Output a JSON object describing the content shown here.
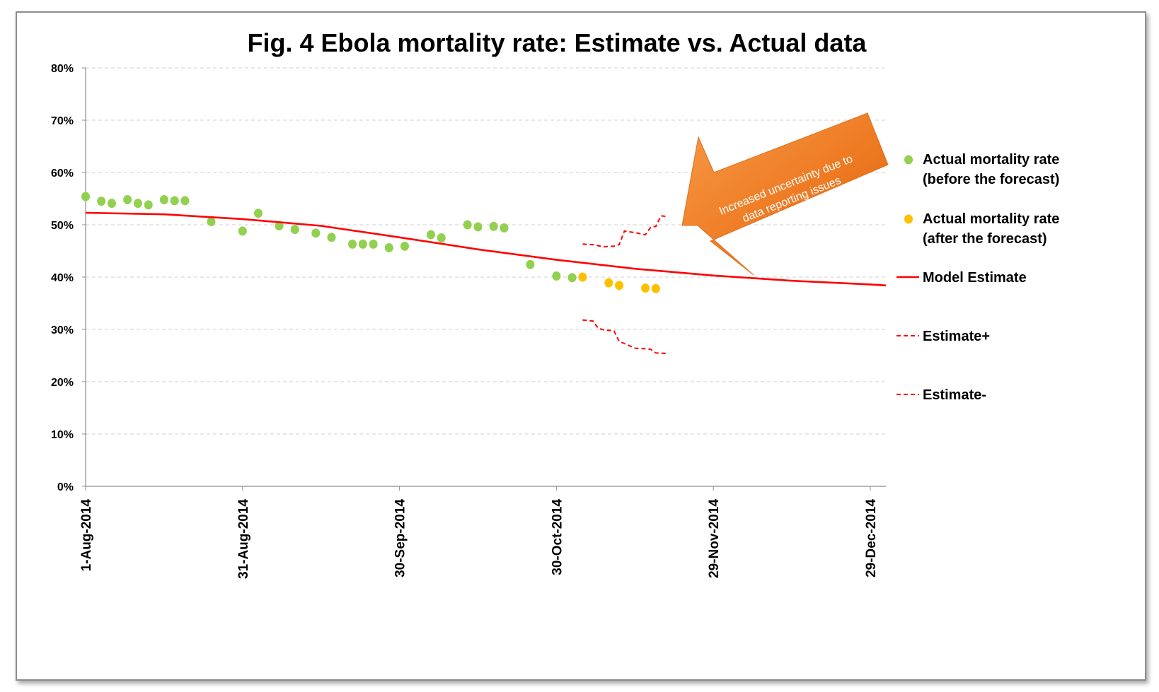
{
  "chart_data": {
    "type": "scatter",
    "title": "Fig. 4 Ebola mortality rate: Estimate vs. Actual data",
    "xlabel": "",
    "ylabel": "",
    "x_axis": {
      "type": "date",
      "ticks": [
        "1-Aug-2014",
        "31-Aug-2014",
        "30-Sep-2014",
        "30-Oct-2014",
        "29-Nov-2014",
        "29-Dec-2014"
      ],
      "range": [
        "2014-08-01",
        "2015-01-01"
      ]
    },
    "y_axis": {
      "ticks": [
        "0%",
        "10%",
        "20%",
        "30%",
        "40%",
        "50%",
        "60%",
        "70%",
        "80%"
      ],
      "range": [
        0,
        80
      ],
      "unit": "%"
    },
    "grid": "horizontal dashed",
    "legend_position": "right",
    "series": [
      {
        "name": "Actual  mortality rate (before the forecast)",
        "legend_lines": [
          "Actual  mortality rate",
          "(before the forecast)"
        ],
        "kind": "points",
        "color": "#92d050",
        "points": [
          [
            "2014-08-01",
            55.4
          ],
          [
            "2014-08-04",
            54.5
          ],
          [
            "2014-08-06",
            54.1
          ],
          [
            "2014-08-09",
            54.8
          ],
          [
            "2014-08-11",
            54.1
          ],
          [
            "2014-08-13",
            53.8
          ],
          [
            "2014-08-16",
            54.8
          ],
          [
            "2014-08-18",
            54.6
          ],
          [
            "2014-08-20",
            54.6
          ],
          [
            "2014-08-25",
            50.6
          ],
          [
            "2014-08-31",
            48.8
          ],
          [
            "2014-09-03",
            52.2
          ],
          [
            "2014-09-07",
            49.8
          ],
          [
            "2014-09-10",
            49.1
          ],
          [
            "2014-09-14",
            48.4
          ],
          [
            "2014-09-17",
            47.6
          ],
          [
            "2014-09-21",
            46.3
          ],
          [
            "2014-09-23",
            46.3
          ],
          [
            "2014-09-25",
            46.3
          ],
          [
            "2014-09-28",
            45.6
          ],
          [
            "2014-10-01",
            45.9
          ],
          [
            "2014-10-06",
            48.1
          ],
          [
            "2014-10-08",
            47.5
          ],
          [
            "2014-10-13",
            50.0
          ],
          [
            "2014-10-15",
            49.6
          ],
          [
            "2014-10-18",
            49.7
          ],
          [
            "2014-10-20",
            49.4
          ],
          [
            "2014-10-25",
            42.4
          ],
          [
            "2014-10-30",
            40.2
          ],
          [
            "2014-11-02",
            39.9
          ]
        ]
      },
      {
        "name": "Actual mortality rate (after the forecast)",
        "legend_lines": [
          "Actual mortality rate",
          "(after the forecast)"
        ],
        "kind": "points",
        "color": "#ffc000",
        "points": [
          [
            "2014-11-04",
            40.0
          ],
          [
            "2014-11-09",
            38.9
          ],
          [
            "2014-11-11",
            38.4
          ],
          [
            "2014-11-16",
            37.9
          ],
          [
            "2014-11-18",
            37.8
          ]
        ]
      },
      {
        "name": "Model Estimate",
        "legend_lines": [
          "Model Estimate"
        ],
        "kind": "line",
        "color": "#ff0000",
        "points": [
          [
            "2014-08-01",
            52.3
          ],
          [
            "2014-08-16",
            52.0
          ],
          [
            "2014-08-31",
            51.1
          ],
          [
            "2014-09-15",
            49.8
          ],
          [
            "2014-09-30",
            47.6
          ],
          [
            "2014-10-15",
            45.3
          ],
          [
            "2014-10-30",
            43.3
          ],
          [
            "2014-11-14",
            41.6
          ],
          [
            "2014-11-29",
            40.3
          ],
          [
            "2014-12-14",
            39.3
          ],
          [
            "2014-12-29",
            38.6
          ],
          [
            "2015-01-01",
            38.4
          ]
        ]
      },
      {
        "name": "Estimate+",
        "legend_lines": [
          "Estimate+"
        ],
        "kind": "dashed",
        "color": "#ff0000",
        "points": [
          [
            "2014-11-04",
            46.3
          ],
          [
            "2014-11-06",
            46.2
          ],
          [
            "2014-11-07",
            46.0
          ],
          [
            "2014-11-08",
            45.8
          ],
          [
            "2014-11-10",
            45.9
          ],
          [
            "2014-11-11",
            46.2
          ],
          [
            "2014-11-12",
            48.8
          ],
          [
            "2014-11-14",
            48.5
          ],
          [
            "2014-11-16",
            48.1
          ],
          [
            "2014-11-17",
            49.5
          ],
          [
            "2014-11-18",
            49.7
          ],
          [
            "2014-11-19",
            51.7
          ],
          [
            "2014-11-20",
            51.6
          ]
        ]
      },
      {
        "name": "Estimate-",
        "legend_lines": [
          "Estimate-"
        ],
        "kind": "dashed",
        "color": "#ff0000",
        "points": [
          [
            "2014-11-04",
            31.8
          ],
          [
            "2014-11-06",
            31.6
          ],
          [
            "2014-11-07",
            30.2
          ],
          [
            "2014-11-08",
            29.9
          ],
          [
            "2014-11-10",
            29.7
          ],
          [
            "2014-11-11",
            27.7
          ],
          [
            "2014-11-12",
            27.3
          ],
          [
            "2014-11-14",
            26.4
          ],
          [
            "2014-11-16",
            26.3
          ],
          [
            "2014-11-17",
            26.2
          ],
          [
            "2014-11-18",
            25.5
          ],
          [
            "2014-11-20",
            25.4
          ]
        ]
      }
    ],
    "annotation": {
      "lines": [
        "Increased uncertainty  due to",
        "data reporting issues"
      ],
      "color": "#f07820"
    }
  }
}
